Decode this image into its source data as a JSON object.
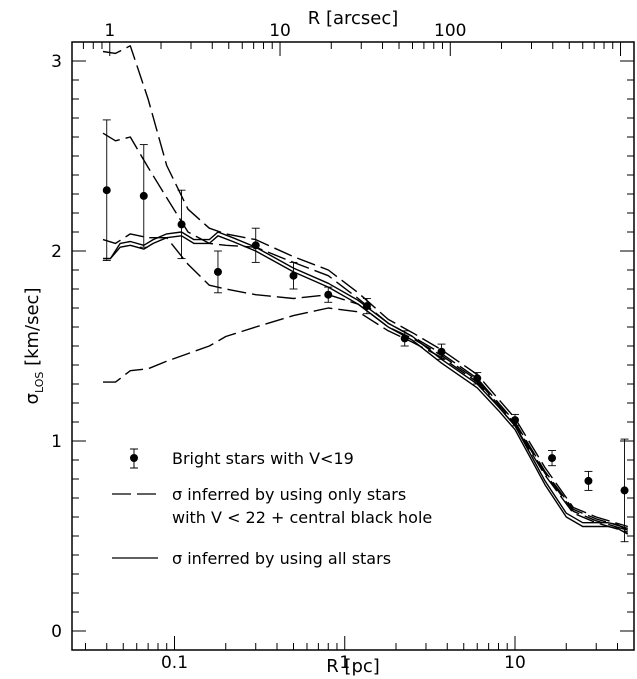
{
  "chart_data": {
    "type": "scatter",
    "xlabel_bottom": "R [pc]",
    "xlabel_top": "R [arcsec]",
    "ylabel_main": "σ",
    "ylabel_sub": "LOS",
    "ylabel_rest": " [km/sec]",
    "xscale": "log",
    "xlim": [
      0.025,
      50
    ],
    "xlim_top_arcsec": [
      0.6,
      1200
    ],
    "ylim": [
      -0.1,
      3.1
    ],
    "x_ticks": [
      "0.1",
      "1",
      "10"
    ],
    "x_top_ticks": [
      "1",
      "10",
      "100"
    ],
    "y_ticks": [
      "0",
      "1",
      "2",
      "3"
    ],
    "legend": {
      "points": "Bright stars with V<19",
      "dashed_line1": "σ inferred by using only stars",
      "dashed_line2": "with V < 22 + central black hole",
      "solid": "σ inferred by using all stars"
    },
    "points": {
      "name": "Bright stars with V<19",
      "x": [
        0.04,
        0.066,
        0.11,
        0.18,
        0.3,
        0.5,
        0.8,
        1.35,
        2.25,
        3.7,
        6.0,
        10.0,
        16.5,
        27.0,
        44.0
      ],
      "y": [
        2.32,
        2.29,
        2.14,
        1.89,
        2.03,
        1.87,
        1.77,
        1.71,
        1.54,
        1.47,
        1.33,
        1.11,
        0.91,
        0.79,
        0.74
      ],
      "err": [
        0.37,
        0.27,
        0.18,
        0.11,
        0.09,
        0.07,
        0.04,
        0.04,
        0.04,
        0.04,
        0.03,
        0.03,
        0.04,
        0.05,
        0.27
      ]
    },
    "series": [
      {
        "style": "solid",
        "x": [
          0.038,
          0.042,
          0.048,
          0.055,
          0.066,
          0.075,
          0.09,
          0.11,
          0.13,
          0.16,
          0.18,
          0.22,
          0.3,
          0.5,
          0.8,
          1.2,
          1.8,
          2.5,
          3.7,
          6,
          8,
          10,
          12,
          15,
          20,
          25,
          30,
          35,
          40,
          46
        ],
        "y": [
          1.96,
          1.96,
          2.04,
          2.05,
          2.03,
          2.06,
          2.09,
          2.1,
          2.06,
          2.06,
          2.1,
          2.07,
          2.02,
          1.91,
          1.83,
          1.74,
          1.62,
          1.55,
          1.43,
          1.3,
          1.18,
          1.08,
          0.95,
          0.79,
          0.62,
          0.57,
          0.57,
          0.57,
          0.56,
          0.53
        ]
      },
      {
        "style": "solid",
        "x": [
          0.038,
          0.042,
          0.048,
          0.055,
          0.066,
          0.075,
          0.09,
          0.11,
          0.13,
          0.16,
          0.18,
          0.22,
          0.3,
          0.5,
          0.8,
          1.2,
          1.8,
          2.5,
          3.7,
          6,
          8,
          10,
          12,
          15,
          20,
          25,
          30,
          35,
          40,
          46
        ],
        "y": [
          1.96,
          1.96,
          2.02,
          2.03,
          2.01,
          2.04,
          2.07,
          2.08,
          2.04,
          2.04,
          2.08,
          2.05,
          2.0,
          1.89,
          1.81,
          1.72,
          1.6,
          1.53,
          1.41,
          1.28,
          1.16,
          1.06,
          0.93,
          0.77,
          0.6,
          0.55,
          0.55,
          0.55,
          0.54,
          0.51
        ]
      },
      {
        "style": "dashed",
        "x": [
          0.038,
          0.045,
          0.055,
          0.07,
          0.09,
          0.12,
          0.16,
          0.2,
          0.3,
          0.5,
          0.8,
          1.2,
          1.8,
          2.5,
          3.7,
          6,
          10,
          15,
          22,
          30,
          46
        ],
        "y": [
          3.05,
          3.04,
          3.08,
          2.8,
          2.45,
          2.22,
          2.12,
          2.09,
          2.06,
          1.97,
          1.9,
          1.78,
          1.64,
          1.57,
          1.48,
          1.35,
          1.12,
          0.86,
          0.65,
          0.6,
          0.55
        ]
      },
      {
        "style": "dashed",
        "x": [
          0.038,
          0.045,
          0.055,
          0.07,
          0.09,
          0.12,
          0.16,
          0.2,
          0.3,
          0.5,
          0.8,
          1.2,
          1.8,
          2.5,
          3.7,
          6,
          10,
          15,
          22,
          30,
          46
        ],
        "y": [
          2.62,
          2.58,
          2.6,
          2.44,
          2.28,
          2.1,
          2.04,
          2.03,
          2.02,
          1.94,
          1.87,
          1.75,
          1.62,
          1.55,
          1.46,
          1.33,
          1.1,
          0.84,
          0.64,
          0.59,
          0.54
        ]
      },
      {
        "style": "dashed",
        "x": [
          0.038,
          0.045,
          0.055,
          0.07,
          0.09,
          0.12,
          0.16,
          0.2,
          0.3,
          0.5,
          0.8,
          1.2,
          1.8,
          2.5,
          3.7,
          6,
          10,
          15,
          22,
          30,
          46
        ],
        "y": [
          2.06,
          2.04,
          2.09,
          2.07,
          2.07,
          1.93,
          1.82,
          1.8,
          1.77,
          1.75,
          1.77,
          1.72,
          1.6,
          1.54,
          1.45,
          1.32,
          1.09,
          0.83,
          0.63,
          0.58,
          0.53
        ]
      },
      {
        "style": "dashed",
        "x": [
          0.038,
          0.045,
          0.055,
          0.07,
          0.09,
          0.12,
          0.16,
          0.2,
          0.3,
          0.5,
          0.8,
          1.2,
          1.8,
          2.5,
          3.7,
          6,
          10,
          15,
          22,
          30,
          46
        ],
        "y": [
          1.31,
          1.31,
          1.37,
          1.38,
          1.42,
          1.46,
          1.5,
          1.55,
          1.6,
          1.66,
          1.7,
          1.68,
          1.58,
          1.52,
          1.44,
          1.31,
          1.08,
          0.82,
          0.62,
          0.57,
          0.52
        ]
      }
    ]
  }
}
